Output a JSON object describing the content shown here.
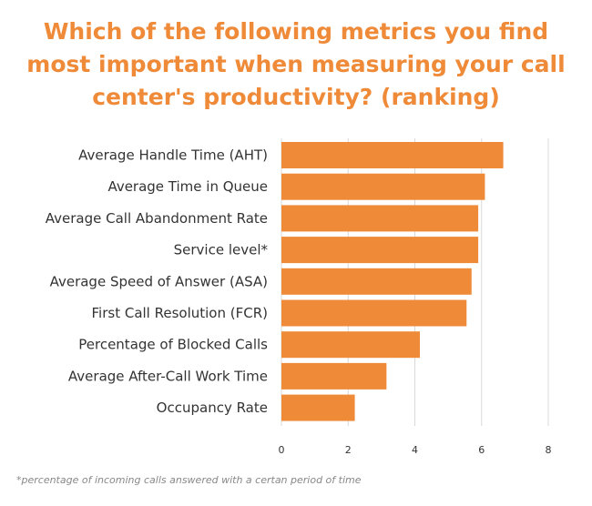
{
  "chart_data": {
    "type": "bar",
    "orientation": "horizontal",
    "title_lines": [
      "Which of the following metrics you find",
      "most important when measuring your call",
      "center's productivity? (ranking)"
    ],
    "title": "Which of the following metrics you find most important when measuring your call center's productivity? (ranking)",
    "categories": [
      "Average Handle Time (AHT)",
      "Average Time in Queue",
      "Average Call Abandonment Rate",
      "Service level*",
      "Average Speed of Answer (ASA)",
      "First Call Resolution (FCR)",
      "Percentage of Blocked Calls",
      "Average After-Call Work Time",
      "Occupancy Rate"
    ],
    "values": [
      6.65,
      6.1,
      5.9,
      5.9,
      5.7,
      5.55,
      4.15,
      3.15,
      2.2
    ],
    "xlim": [
      0,
      8
    ],
    "x_ticks": [
      0,
      2,
      4,
      6,
      8
    ],
    "grid": true,
    "bar_color": "#ef8a38",
    "title_color": "#ef8a38",
    "footnote": "*percentage of incoming calls answered with a certan period of time"
  }
}
